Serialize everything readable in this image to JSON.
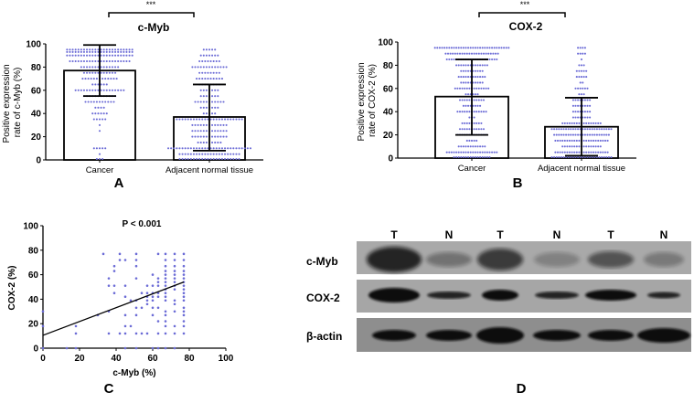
{
  "dot_color": "#6b6bd6",
  "chart_data": [
    {
      "panel": "A",
      "type": "bar",
      "title": "c-Myb",
      "significance": "***",
      "ylabel_line1": "Positive expression",
      "ylabel_line2": "rate of c-Myb (%)",
      "ylim": [
        0,
        100
      ],
      "yticks": [
        "0",
        "20",
        "40",
        "60",
        "80",
        "100"
      ],
      "categories": [
        "Cancer",
        "Adjacent normal tissue"
      ],
      "means": [
        77,
        37
      ],
      "sd_low": [
        55,
        8
      ],
      "sd_high": [
        99,
        65
      ],
      "dot_rows": [
        [
          [
            95,
            24
          ],
          [
            93,
            24
          ],
          [
            90,
            24
          ],
          [
            85,
            22
          ],
          [
            80,
            14
          ],
          [
            75,
            12
          ],
          [
            70,
            13
          ],
          [
            65,
            6
          ],
          [
            60,
            18
          ],
          [
            55,
            12
          ],
          [
            50,
            11
          ],
          [
            45,
            4
          ],
          [
            40,
            6
          ],
          [
            35,
            5
          ],
          [
            30,
            1
          ],
          [
            25,
            1
          ],
          [
            10,
            5
          ],
          [
            5,
            1
          ],
          [
            0,
            3
          ]
        ],
        [
          [
            95,
            5
          ],
          [
            90,
            7
          ],
          [
            85,
            8
          ],
          [
            80,
            13
          ],
          [
            75,
            8
          ],
          [
            70,
            10
          ],
          [
            65,
            8
          ],
          [
            60,
            7
          ],
          [
            55,
            7
          ],
          [
            50,
            11
          ],
          [
            45,
            7
          ],
          [
            40,
            5
          ],
          [
            35,
            24
          ],
          [
            30,
            13
          ],
          [
            25,
            13
          ],
          [
            20,
            13
          ],
          [
            15,
            9
          ],
          [
            10,
            30
          ],
          [
            5,
            22
          ],
          [
            0,
            22
          ]
        ]
      ]
    },
    {
      "panel": "B",
      "type": "bar",
      "title": "COX-2",
      "significance": "***",
      "ylabel_line1": "Positive expression",
      "ylabel_line2": "rate of COX-2 (%)",
      "ylim": [
        0,
        100
      ],
      "yticks": [
        "0",
        "20",
        "40",
        "60",
        "80",
        "100"
      ],
      "categories": [
        "Cancer",
        "Adjacent normal tissue"
      ],
      "means": [
        53,
        27
      ],
      "sd_low": [
        20,
        2
      ],
      "sd_high": [
        85,
        52
      ],
      "dot_rows": [
        [
          [
            95,
            32
          ],
          [
            90,
            23
          ],
          [
            85,
            22
          ],
          [
            80,
            14
          ],
          [
            75,
            10
          ],
          [
            70,
            12
          ],
          [
            65,
            10
          ],
          [
            60,
            15
          ],
          [
            55,
            6
          ],
          [
            50,
            11
          ],
          [
            45,
            8
          ],
          [
            40,
            13
          ],
          [
            35,
            3
          ],
          [
            30,
            9
          ],
          [
            25,
            11
          ],
          [
            20,
            13
          ],
          [
            15,
            5
          ],
          [
            10,
            12
          ],
          [
            5,
            22
          ],
          [
            0,
            16
          ]
        ],
        [
          [
            95,
            4
          ],
          [
            90,
            4
          ],
          [
            85,
            1
          ],
          [
            80,
            3
          ],
          [
            75,
            5
          ],
          [
            70,
            5
          ],
          [
            65,
            2
          ],
          [
            60,
            6
          ],
          [
            55,
            3
          ],
          [
            50,
            8
          ],
          [
            45,
            8
          ],
          [
            40,
            8
          ],
          [
            35,
            8
          ],
          [
            30,
            17
          ],
          [
            25,
            26
          ],
          [
            20,
            24
          ],
          [
            15,
            23
          ],
          [
            10,
            17
          ],
          [
            5,
            23
          ],
          [
            0,
            26
          ]
        ]
      ]
    },
    {
      "panel": "C",
      "type": "scatter",
      "annotation": "P < 0.001",
      "xlabel": "c-Myb (%)",
      "ylabel": "COX-2 (%)",
      "xlim": [
        0,
        100
      ],
      "ylim": [
        0,
        100
      ],
      "xticks": [
        "0",
        "20",
        "40",
        "60",
        "80",
        "100"
      ],
      "yticks": [
        "0",
        "20",
        "40",
        "60",
        "80",
        "100"
      ],
      "regression": {
        "x": [
          0,
          77
        ],
        "y": [
          10.5,
          54
        ]
      },
      "columns": [
        [
          0,
          [
            30,
            18,
            0
          ]
        ],
        [
          13,
          [
            0
          ]
        ],
        [
          18,
          [
            18,
            12,
            0
          ]
        ],
        [
          30,
          [
            27
          ]
        ],
        [
          33,
          [
            77
          ]
        ],
        [
          36,
          [
            57,
            51,
            30,
            12
          ]
        ],
        [
          39,
          [
            67,
            63,
            51,
            45
          ]
        ],
        [
          42,
          [
            77,
            72,
            12
          ]
        ],
        [
          45,
          [
            72,
            51,
            42,
            27,
            18,
            12,
            0
          ]
        ],
        [
          48,
          [
            39,
            18
          ]
        ],
        [
          51,
          [
            77,
            72,
            67,
            57,
            39,
            33,
            27,
            12,
            0
          ]
        ],
        [
          54,
          [
            45,
            33,
            12
          ]
        ],
        [
          57,
          [
            51,
            45,
            42,
            39,
            36,
            12
          ]
        ],
        [
          60,
          [
            60,
            51,
            45,
            42,
            39,
            33,
            27,
            0
          ]
        ],
        [
          63,
          [
            77,
            57,
            54,
            51,
            45,
            42,
            33,
            22,
            12,
            0
          ]
        ],
        [
          67,
          [
            77,
            72,
            67,
            63,
            60,
            57,
            54,
            51,
            48,
            45,
            42,
            39,
            30,
            27,
            22,
            18,
            12,
            0
          ]
        ],
        [
          72,
          [
            77,
            72,
            67,
            63,
            60,
            57,
            54,
            51,
            48,
            39,
            36,
            30,
            18,
            12,
            0
          ]
        ],
        [
          77,
          [
            77,
            72,
            67,
            63,
            60,
            57,
            54,
            51,
            48,
            45,
            42,
            39,
            33,
            30,
            27,
            22,
            18,
            12
          ]
        ]
      ]
    }
  ],
  "panel_labels": {
    "a": "A",
    "b": "B",
    "c": "C",
    "d": "D"
  },
  "western_blot": {
    "lanes": [
      "T",
      "N",
      "T",
      "N",
      "T",
      "N"
    ],
    "rows": [
      "c-Myb",
      "COX-2",
      "β-actin"
    ]
  }
}
